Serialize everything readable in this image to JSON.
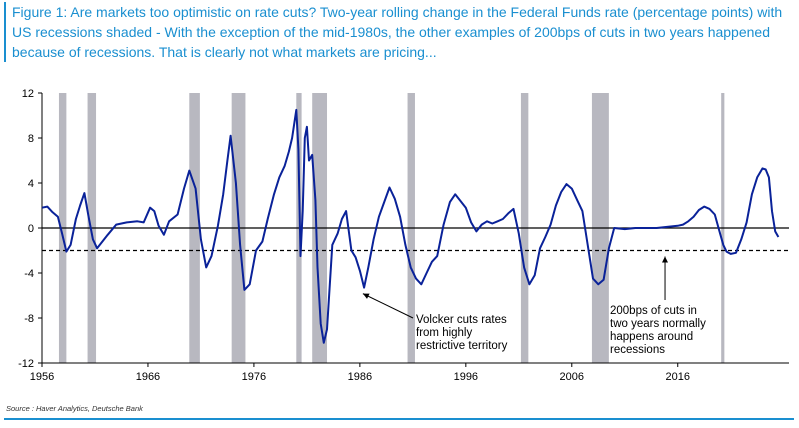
{
  "title": "Figure 1: Are markets too optimistic on rate cuts? Two-year rolling change in the Federal Funds rate (percentage points) with US recessions shaded - With the exception of the mid-1980s, the other examples of 200bps of cuts in two years happened because of recessions. That is clearly not what markets are pricing...",
  "source": "Source : Haver Analytics, Deutsche Bank",
  "colors": {
    "line": "#0a2299",
    "recession": "#b8b8c0",
    "accent": "#1a8fd0"
  },
  "chart_data": {
    "type": "line",
    "title": "Figure 1: Are markets too optimistic on rate cuts?",
    "xlabel": "",
    "ylabel": "percentage points",
    "xlim": [
      1956,
      2026.5
    ],
    "ylim": [
      -12,
      12
    ],
    "x_ticks": [
      1956,
      1966,
      1976,
      1986,
      1996,
      2006,
      2016
    ],
    "x_tick_labels": [
      "1956",
      "1966",
      "1976",
      "1986",
      "1996",
      "2006",
      "2016"
    ],
    "y_ticks": [
      12,
      8,
      4,
      0,
      -4,
      -8,
      -12
    ],
    "y_tick_labels": [
      "12",
      "8",
      "4",
      "0",
      "-4",
      "-8",
      "-12"
    ],
    "reference_line": {
      "value": -2,
      "style": "dashed"
    },
    "recessions": [
      [
        1957.6,
        1958.3
      ],
      [
        1960.3,
        1961.1
      ],
      [
        1969.9,
        1970.9
      ],
      [
        1973.9,
        1975.2
      ],
      [
        1980.0,
        1980.5
      ],
      [
        1981.5,
        1982.9
      ],
      [
        1990.5,
        1991.2
      ],
      [
        2001.2,
        2001.9
      ],
      [
        2007.9,
        2009.5
      ],
      [
        2020.1,
        2020.4
      ]
    ],
    "series": [
      {
        "name": "Two-year rolling change in Fed Funds rate",
        "x": [
          1956.0,
          1956.5,
          1957.0,
          1957.5,
          1957.9,
          1958.3,
          1958.7,
          1959.2,
          1959.6,
          1960.0,
          1960.4,
          1960.8,
          1961.2,
          1961.7,
          1962.2,
          1963.0,
          1964.0,
          1965.0,
          1965.6,
          1966.2,
          1966.6,
          1967.0,
          1967.5,
          1968.0,
          1968.8,
          1969.4,
          1969.9,
          1970.5,
          1971.0,
          1971.5,
          1972.0,
          1972.6,
          1973.1,
          1973.5,
          1973.8,
          1974.3,
          1974.7,
          1975.1,
          1975.6,
          1976.2,
          1976.8,
          1977.3,
          1977.9,
          1978.4,
          1978.9,
          1979.3,
          1979.6,
          1980.0,
          1980.2,
          1980.4,
          1980.6,
          1980.8,
          1981.0,
          1981.2,
          1981.5,
          1981.8,
          1982.0,
          1982.3,
          1982.6,
          1982.9,
          1983.4,
          1983.9,
          1984.3,
          1984.7,
          1985.2,
          1985.6,
          1986.0,
          1986.4,
          1986.8,
          1987.3,
          1987.8,
          1988.3,
          1988.8,
          1989.3,
          1989.8,
          1990.3,
          1990.8,
          1991.3,
          1991.8,
          1992.3,
          1992.8,
          1993.3,
          1993.9,
          1994.5,
          1995.0,
          1995.5,
          1996.0,
          1996.5,
          1997.0,
          1997.5,
          1998.0,
          1998.5,
          1999.0,
          1999.5,
          2000.0,
          2000.5,
          2001.0,
          2001.5,
          2002.0,
          2002.5,
          2003.0,
          2003.5,
          2004.0,
          2004.5,
          2005.0,
          2005.5,
          2006.0,
          2006.5,
          2007.0,
          2007.5,
          2008.0,
          2008.5,
          2009.0,
          2009.5,
          2010.0,
          2011.0,
          2012.0,
          2013.0,
          2014.0,
          2015.0,
          2016.0,
          2016.5,
          2017.0,
          2017.5,
          2018.0,
          2018.5,
          2019.0,
          2019.5,
          2020.0,
          2020.3,
          2020.6,
          2021.0,
          2021.5,
          2022.0,
          2022.5,
          2023.0,
          2023.5,
          2024.0,
          2024.3,
          2024.6,
          2024.9,
          2025.2,
          2025.5
        ],
        "y": [
          1.8,
          1.9,
          1.4,
          1.0,
          -0.5,
          -2.1,
          -1.5,
          0.8,
          2.0,
          3.1,
          1.0,
          -1.0,
          -1.8,
          -1.2,
          -0.6,
          0.3,
          0.5,
          0.6,
          0.5,
          1.8,
          1.5,
          0.2,
          -0.6,
          0.6,
          1.2,
          3.5,
          5.1,
          3.5,
          -1.0,
          -3.5,
          -2.5,
          0.2,
          3.0,
          6.0,
          8.2,
          4.0,
          -1.5,
          -5.5,
          -5.0,
          -2.0,
          -1.2,
          0.8,
          3.0,
          4.5,
          5.5,
          6.8,
          8.0,
          10.5,
          7.0,
          -2.5,
          1.5,
          8.0,
          9.0,
          6.0,
          6.5,
          2.5,
          -3.5,
          -8.5,
          -10.2,
          -9.0,
          -1.5,
          -0.5,
          0.8,
          1.5,
          -2.0,
          -2.6,
          -3.8,
          -5.3,
          -3.5,
          -1.0,
          1.0,
          2.3,
          3.6,
          2.6,
          1.0,
          -1.5,
          -3.5,
          -4.5,
          -5.0,
          -4.0,
          -3.0,
          -2.5,
          0.3,
          2.3,
          3.0,
          2.4,
          1.8,
          0.5,
          -0.3,
          0.3,
          0.6,
          0.4,
          0.6,
          0.8,
          1.3,
          1.7,
          -0.5,
          -3.5,
          -5.0,
          -4.2,
          -1.8,
          -0.8,
          0.3,
          2.0,
          3.2,
          3.9,
          3.5,
          2.5,
          1.5,
          -1.5,
          -4.5,
          -5.0,
          -4.6,
          -1.8,
          0.0,
          -0.1,
          0.0,
          0.0,
          0.0,
          0.1,
          0.2,
          0.3,
          0.6,
          1.0,
          1.6,
          1.9,
          1.7,
          1.2,
          -0.5,
          -1.5,
          -2.1,
          -2.3,
          -2.2,
          -1.0,
          0.5,
          3.0,
          4.5,
          5.3,
          5.2,
          4.5,
          1.5,
          -0.3,
          -0.8
        ]
      }
    ],
    "annotations": [
      {
        "lines": [
          "Volcker cuts rates",
          "from highly",
          "restrictive territory"
        ],
        "arrow_x": 1986.0,
        "arrow_y": -5.3
      },
      {
        "lines": [
          "200bps of cuts in",
          "two years normally",
          "happens around",
          "recessions"
        ],
        "arrow_x": 2014.8,
        "arrow_y": -2.0
      }
    ]
  }
}
